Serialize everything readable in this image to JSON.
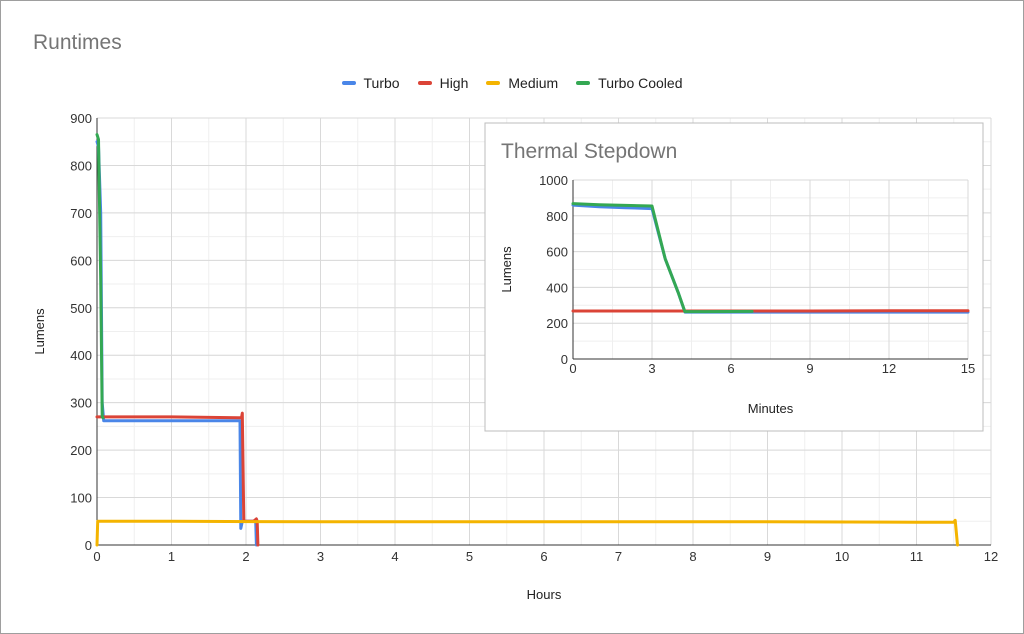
{
  "chart_data": [
    {
      "type": "line",
      "title": "Runtimes",
      "xlabel": "Hours",
      "ylabel": "Lumens",
      "xlim": [
        0,
        12
      ],
      "ylim": [
        0,
        900
      ],
      "xticks": [
        0,
        1,
        2,
        3,
        4,
        5,
        6,
        7,
        8,
        9,
        10,
        11,
        12
      ],
      "yticks": [
        0,
        100,
        200,
        300,
        400,
        500,
        600,
        700,
        800,
        900
      ],
      "grid": true,
      "legend_position": "top",
      "series": [
        {
          "name": "Turbo",
          "color": "#4a86e8",
          "x": [
            0,
            0.02,
            0.05,
            0.07,
            0.09,
            1.0,
            1.9,
            1.92,
            1.93,
            1.95,
            2.05,
            2.13,
            2.14
          ],
          "y": [
            850,
            840,
            700,
            300,
            262,
            262,
            262,
            262,
            35,
            50,
            50,
            50,
            0
          ]
        },
        {
          "name": "High",
          "color": "#db4437",
          "x": [
            0,
            0.03,
            0.06,
            0.09,
            1.0,
            1.9,
            1.94,
            1.95,
            1.97,
            2.1,
            2.14,
            2.15,
            2.16
          ],
          "y": [
            270,
            270,
            270,
            270,
            270,
            268,
            268,
            278,
            50,
            50,
            55,
            50,
            0
          ]
        },
        {
          "name": "Medium",
          "color": "#f4b400",
          "x": [
            0,
            0.01,
            1,
            3,
            6,
            9,
            11,
            11.5,
            11.52,
            11.55
          ],
          "y": [
            0,
            50,
            50,
            49,
            49,
            49,
            48,
            48,
            52,
            0
          ]
        },
        {
          "name": "Turbo Cooled",
          "color": "#34a853",
          "x": [
            0,
            0.02,
            0.05,
            0.07,
            0.08
          ],
          "y": [
            865,
            855,
            560,
            270,
            268
          ]
        }
      ]
    },
    {
      "type": "line",
      "title": "Thermal Stepdown",
      "xlabel": "Minutes",
      "ylabel": "Lumens",
      "xlim": [
        0,
        15
      ],
      "ylim": [
        0,
        1000
      ],
      "xticks": [
        0,
        3,
        6,
        9,
        12,
        15
      ],
      "yticks": [
        0,
        200,
        400,
        600,
        800,
        1000
      ],
      "grid": true,
      "series": [
        {
          "name": "Turbo",
          "color": "#4a86e8",
          "x": [
            0,
            1,
            2,
            3,
            3.5,
            4,
            4.25,
            6,
            9,
            12,
            15
          ],
          "y": [
            860,
            850,
            845,
            840,
            560,
            370,
            262,
            262,
            262,
            262,
            262
          ]
        },
        {
          "name": "High",
          "color": "#db4437",
          "x": [
            0,
            3,
            6,
            9,
            12,
            15
          ],
          "y": [
            268,
            268,
            268,
            268,
            270,
            270
          ]
        },
        {
          "name": "Turbo Cooled",
          "color": "#34a853",
          "x": [
            0,
            1,
            2,
            3,
            3.5,
            4,
            4.25,
            5,
            6.8
          ],
          "y": [
            868,
            862,
            858,
            855,
            560,
            370,
            265,
            265,
            266
          ]
        }
      ]
    }
  ]
}
